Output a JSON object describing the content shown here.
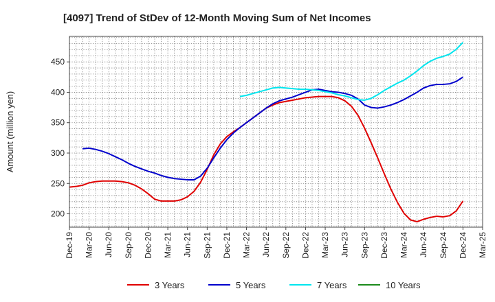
{
  "chart_data": {
    "type": "line",
    "title": "[4097]  Trend of StDev of 12-Month Moving Sum of Net Incomes",
    "ylabel": "Amount (million yen)",
    "xlabel": "",
    "ylim": [
      178,
      492
    ],
    "yticks": [
      200,
      250,
      300,
      350,
      400,
      450
    ],
    "x_range": [
      "2019-12",
      "2025-03"
    ],
    "x_ticks": [
      "Dec-19",
      "Mar-20",
      "Jun-20",
      "Sep-20",
      "Dec-20",
      "Mar-21",
      "Jun-21",
      "Sep-21",
      "Dec-21",
      "Mar-22",
      "Jun-22",
      "Sep-22",
      "Dec-22",
      "Mar-23",
      "Jun-23",
      "Sep-23",
      "Dec-23",
      "Mar-24",
      "Jun-24",
      "Sep-24",
      "Dec-24",
      "Mar-25"
    ],
    "grid": true,
    "legend_position": "bottom",
    "series": [
      {
        "name": "3 Years",
        "color": "#e00000",
        "points": [
          [
            "2019-12",
            244
          ],
          [
            "2020-01",
            245
          ],
          [
            "2020-02",
            247
          ],
          [
            "2020-03",
            251
          ],
          [
            "2020-04",
            253
          ],
          [
            "2020-05",
            254
          ],
          [
            "2020-06",
            254
          ],
          [
            "2020-07",
            254
          ],
          [
            "2020-08",
            253
          ],
          [
            "2020-09",
            251
          ],
          [
            "2020-10",
            247
          ],
          [
            "2020-11",
            241
          ],
          [
            "2020-12",
            233
          ],
          [
            "2021-01",
            224
          ],
          [
            "2021-02",
            221
          ],
          [
            "2021-03",
            221
          ],
          [
            "2021-04",
            221
          ],
          [
            "2021-05",
            223
          ],
          [
            "2021-06",
            228
          ],
          [
            "2021-07",
            237
          ],
          [
            "2021-08",
            252
          ],
          [
            "2021-09",
            273
          ],
          [
            "2021-10",
            297
          ],
          [
            "2021-11",
            315
          ],
          [
            "2021-12",
            327
          ],
          [
            "2022-01",
            335
          ],
          [
            "2022-02",
            342
          ],
          [
            "2022-03",
            350
          ],
          [
            "2022-04",
            358
          ],
          [
            "2022-05",
            366
          ],
          [
            "2022-06",
            374
          ],
          [
            "2022-07",
            379
          ],
          [
            "2022-08",
            383
          ],
          [
            "2022-09",
            385
          ],
          [
            "2022-10",
            387
          ],
          [
            "2022-11",
            389
          ],
          [
            "2022-12",
            391
          ],
          [
            "2023-01",
            392
          ],
          [
            "2023-02",
            393
          ],
          [
            "2023-03",
            393
          ],
          [
            "2023-04",
            393
          ],
          [
            "2023-05",
            391
          ],
          [
            "2023-06",
            386
          ],
          [
            "2023-07",
            377
          ],
          [
            "2023-08",
            362
          ],
          [
            "2023-09",
            341
          ],
          [
            "2023-10",
            317
          ],
          [
            "2023-11",
            292
          ],
          [
            "2023-12",
            266
          ],
          [
            "2024-01",
            241
          ],
          [
            "2024-02",
            219
          ],
          [
            "2024-03",
            201
          ],
          [
            "2024-04",
            190
          ],
          [
            "2024-05",
            187
          ],
          [
            "2024-06",
            191
          ],
          [
            "2024-07",
            194
          ],
          [
            "2024-08",
            196
          ],
          [
            "2024-09",
            195
          ],
          [
            "2024-10",
            197
          ],
          [
            "2024-11",
            205
          ],
          [
            "2024-12",
            221
          ]
        ]
      },
      {
        "name": "5 Years",
        "color": "#0000cc",
        "points": [
          [
            "2020-02",
            307
          ],
          [
            "2020-03",
            308
          ],
          [
            "2020-04",
            306
          ],
          [
            "2020-05",
            303
          ],
          [
            "2020-06",
            299
          ],
          [
            "2020-07",
            294
          ],
          [
            "2020-08",
            289
          ],
          [
            "2020-09",
            283
          ],
          [
            "2020-10",
            278
          ],
          [
            "2020-11",
            274
          ],
          [
            "2020-12",
            270
          ],
          [
            "2021-01",
            267
          ],
          [
            "2021-02",
            263
          ],
          [
            "2021-03",
            260
          ],
          [
            "2021-04",
            258
          ],
          [
            "2021-05",
            257
          ],
          [
            "2021-06",
            256
          ],
          [
            "2021-07",
            256
          ],
          [
            "2021-08",
            262
          ],
          [
            "2021-09",
            275
          ],
          [
            "2021-10",
            292
          ],
          [
            "2021-11",
            308
          ],
          [
            "2021-12",
            322
          ],
          [
            "2022-01",
            333
          ],
          [
            "2022-02",
            342
          ],
          [
            "2022-03",
            350
          ],
          [
            "2022-04",
            358
          ],
          [
            "2022-05",
            366
          ],
          [
            "2022-06",
            374
          ],
          [
            "2022-07",
            381
          ],
          [
            "2022-08",
            386
          ],
          [
            "2022-09",
            389
          ],
          [
            "2022-10",
            392
          ],
          [
            "2022-11",
            396
          ],
          [
            "2022-12",
            400
          ],
          [
            "2023-01",
            404
          ],
          [
            "2023-02",
            405
          ],
          [
            "2023-03",
            403
          ],
          [
            "2023-04",
            401
          ],
          [
            "2023-05",
            400
          ],
          [
            "2023-06",
            398
          ],
          [
            "2023-07",
            395
          ],
          [
            "2023-08",
            389
          ],
          [
            "2023-09",
            379
          ],
          [
            "2023-10",
            375
          ],
          [
            "2023-11",
            374
          ],
          [
            "2023-12",
            376
          ],
          [
            "2024-01",
            379
          ],
          [
            "2024-02",
            383
          ],
          [
            "2024-03",
            388
          ],
          [
            "2024-04",
            394
          ],
          [
            "2024-05",
            400
          ],
          [
            "2024-06",
            407
          ],
          [
            "2024-07",
            411
          ],
          [
            "2024-08",
            413
          ],
          [
            "2024-09",
            413
          ],
          [
            "2024-10",
            414
          ],
          [
            "2024-11",
            418
          ],
          [
            "2024-12",
            425
          ]
        ]
      },
      {
        "name": "7 Years",
        "color": "#00e5ee",
        "points": [
          [
            "2022-02",
            393
          ],
          [
            "2022-03",
            395
          ],
          [
            "2022-04",
            398
          ],
          [
            "2022-05",
            401
          ],
          [
            "2022-06",
            404
          ],
          [
            "2022-07",
            407
          ],
          [
            "2022-08",
            408
          ],
          [
            "2022-09",
            407
          ],
          [
            "2022-10",
            406
          ],
          [
            "2022-11",
            405
          ],
          [
            "2022-12",
            405
          ],
          [
            "2023-01",
            404
          ],
          [
            "2023-02",
            403
          ],
          [
            "2023-03",
            401
          ],
          [
            "2023-04",
            399
          ],
          [
            "2023-05",
            396
          ],
          [
            "2023-06",
            394
          ],
          [
            "2023-07",
            391
          ],
          [
            "2023-08",
            388
          ],
          [
            "2023-09",
            387
          ],
          [
            "2023-10",
            390
          ],
          [
            "2023-11",
            396
          ],
          [
            "2023-12",
            403
          ],
          [
            "2024-01",
            409
          ],
          [
            "2024-02",
            415
          ],
          [
            "2024-03",
            420
          ],
          [
            "2024-04",
            427
          ],
          [
            "2024-05",
            435
          ],
          [
            "2024-06",
            444
          ],
          [
            "2024-07",
            451
          ],
          [
            "2024-08",
            456
          ],
          [
            "2024-09",
            459
          ],
          [
            "2024-10",
            463
          ],
          [
            "2024-11",
            471
          ],
          [
            "2024-12",
            482
          ]
        ]
      },
      {
        "name": "10 Years",
        "color": "#1a8a1a",
        "points": []
      }
    ]
  }
}
